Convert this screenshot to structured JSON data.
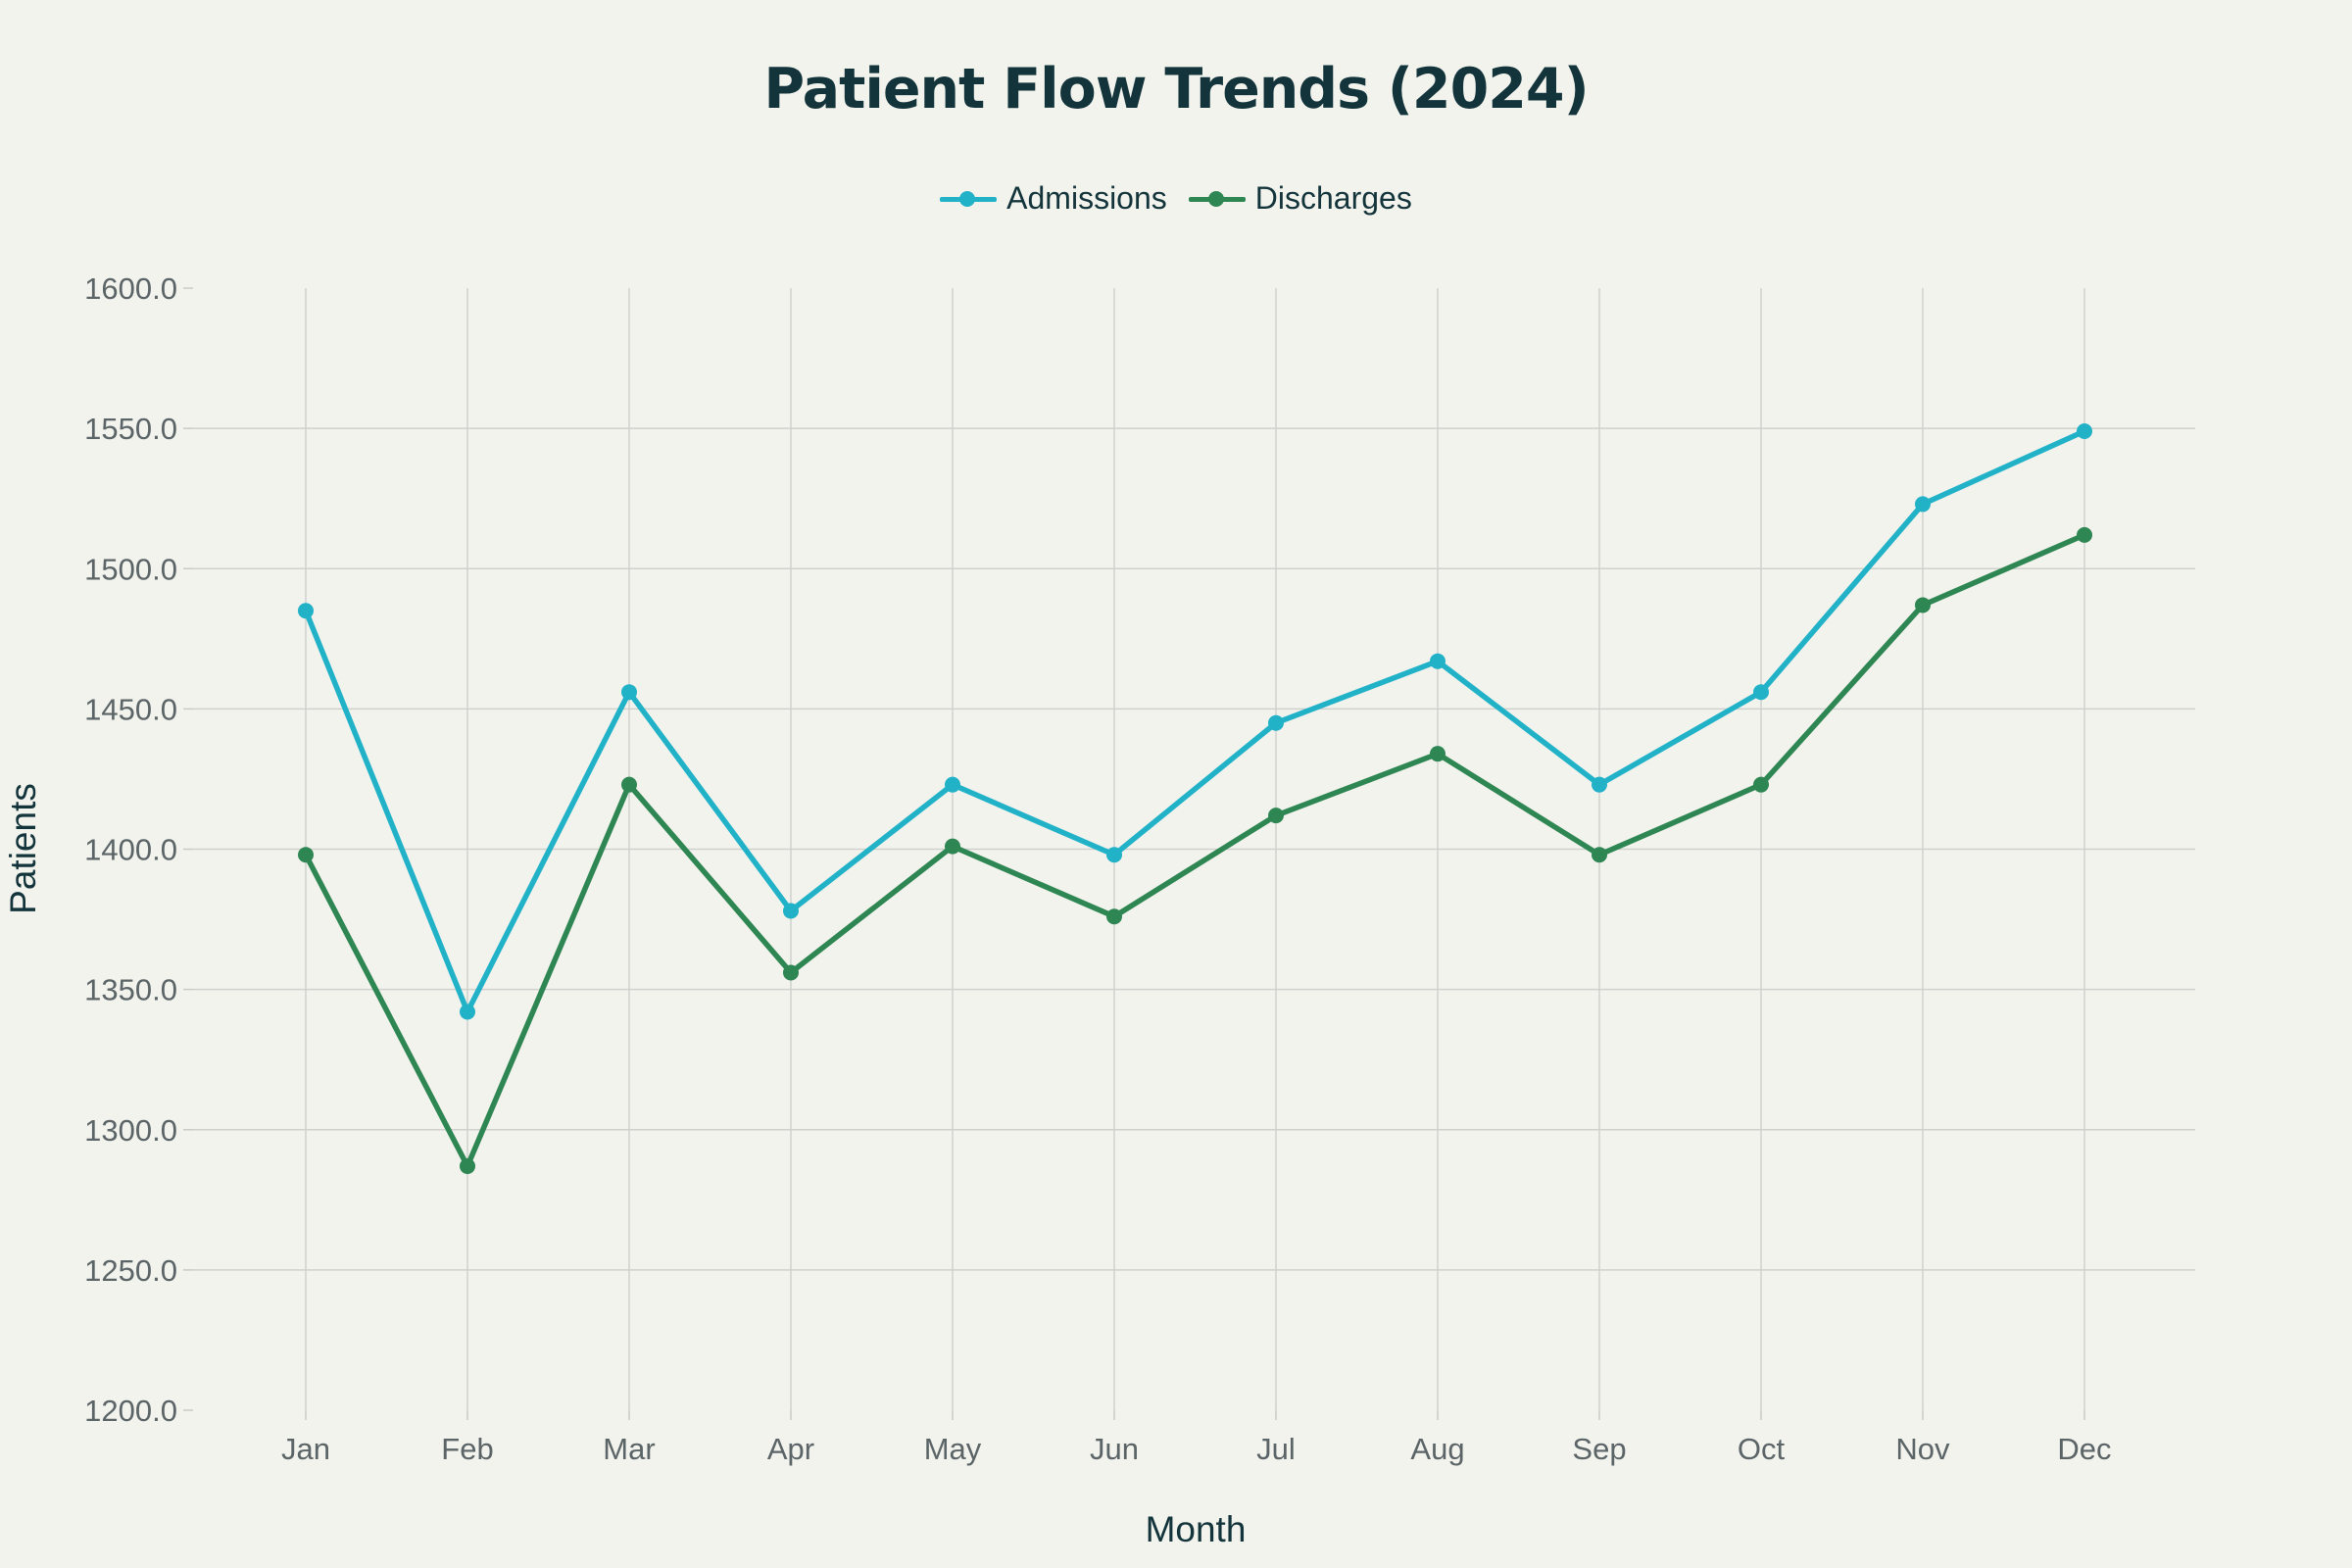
{
  "chart_data": {
    "type": "line",
    "title": "Patient Flow Trends (2024)",
    "xlabel": "Month",
    "ylabel": "Patients",
    "categories": [
      "Jan",
      "Feb",
      "Mar",
      "Apr",
      "May",
      "Jun",
      "Jul",
      "Aug",
      "Sep",
      "Oct",
      "Nov",
      "Dec"
    ],
    "series": [
      {
        "name": "Admissions",
        "color": "#21b2c8",
        "values": [
          1485,
          1342,
          1456,
          1378,
          1423,
          1398,
          1445,
          1467,
          1423,
          1456,
          1523,
          1549
        ]
      },
      {
        "name": "Discharges",
        "color": "#2e8653",
        "values": [
          1398,
          1287,
          1423,
          1356,
          1401,
          1376,
          1412,
          1434,
          1398,
          1423,
          1487,
          1512
        ]
      }
    ],
    "ylim": [
      1200,
      1600
    ],
    "yticks": [
      "1200.0",
      "1250.0",
      "1300.0",
      "1350.0",
      "1400.0",
      "1450.0",
      "1500.0",
      "1550.0",
      "1600.0"
    ],
    "grid": true,
    "legend_position": "top-center"
  }
}
